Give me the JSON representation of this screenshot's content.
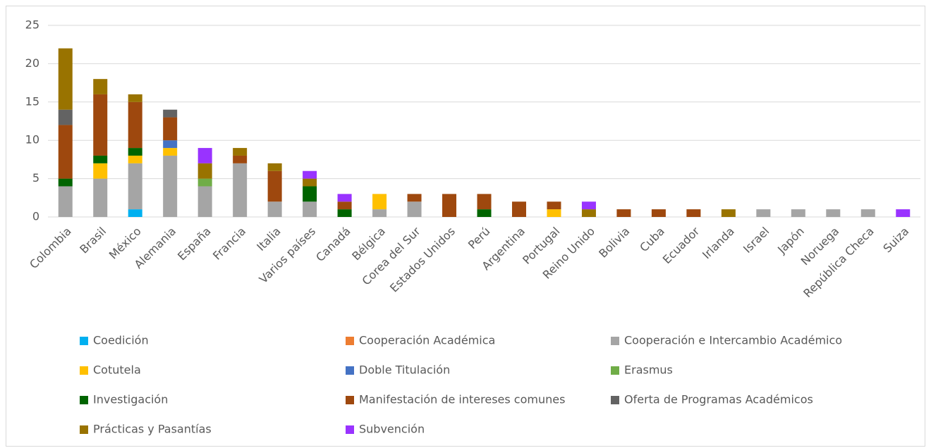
{
  "chart_data": {
    "type": "stacked_bar",
    "categories": [
      "Colombia",
      "Brasil",
      "México",
      "Alemania",
      "España",
      "Francia",
      "Italia",
      "Varios países",
      "Canadá",
      "Bélgica",
      "Corea del Sur",
      "Estados Unidos",
      "Perú",
      "Argentina",
      "Portugal",
      "Reino Unido",
      "Bolivia",
      "Cuba",
      "Ecuador",
      "Irlanda",
      "Israel",
      "Japón",
      "Noruega",
      "República Checa",
      "Suiza"
    ],
    "series": [
      {
        "name": "Coedición",
        "color": "#00b0f0",
        "values": [
          0,
          0,
          1,
          0,
          0,
          0,
          0,
          0,
          0,
          0,
          0,
          0,
          0,
          0,
          0,
          0,
          0,
          0,
          0,
          0,
          0,
          0,
          0,
          0,
          0
        ]
      },
      {
        "name": "Cooperación Académica",
        "color": "#ed7d31",
        "values": [
          0,
          0,
          0,
          0,
          0,
          0,
          0,
          0,
          0,
          0,
          0,
          0,
          0,
          0,
          0,
          0,
          0,
          0,
          0,
          0,
          0,
          0,
          0,
          0,
          0
        ]
      },
      {
        "name": "Cooperación e Intercambio Académico",
        "color": "#a5a5a5",
        "values": [
          4,
          5,
          6,
          8,
          4,
          7,
          2,
          2,
          0,
          1,
          2,
          0,
          0,
          0,
          0,
          0,
          0,
          0,
          0,
          0,
          1,
          1,
          1,
          1,
          0
        ]
      },
      {
        "name": "Cotutela",
        "color": "#ffc000",
        "values": [
          0,
          2,
          1,
          1,
          0,
          0,
          0,
          0,
          0,
          2,
          0,
          0,
          0,
          0,
          1,
          0,
          0,
          0,
          0,
          0,
          0,
          0,
          0,
          0,
          0
        ]
      },
      {
        "name": "Doble Titulación",
        "color": "#4472c4",
        "values": [
          0,
          0,
          0,
          1,
          0,
          0,
          0,
          0,
          0,
          0,
          0,
          0,
          0,
          0,
          0,
          0,
          0,
          0,
          0,
          0,
          0,
          0,
          0,
          0,
          0
        ]
      },
      {
        "name": "Erasmus",
        "color": "#70ad47",
        "values": [
          0,
          0,
          0,
          0,
          1,
          0,
          0,
          0,
          0,
          0,
          0,
          0,
          0,
          0,
          0,
          0,
          0,
          0,
          0,
          0,
          0,
          0,
          0,
          0,
          0
        ]
      },
      {
        "name": "Investigación",
        "color": "#006400",
        "values": [
          1,
          1,
          1,
          0,
          0,
          0,
          0,
          2,
          1,
          0,
          0,
          0,
          1,
          0,
          0,
          0,
          0,
          0,
          0,
          0,
          0,
          0,
          0,
          0,
          0
        ]
      },
      {
        "name": "Manifestación de intereses comunes",
        "color": "#9e480e",
        "values": [
          7,
          8,
          6,
          3,
          0,
          1,
          4,
          0,
          1,
          0,
          1,
          3,
          2,
          2,
          1,
          0,
          1,
          1,
          1,
          0,
          0,
          0,
          0,
          0,
          0
        ]
      },
      {
        "name": "Oferta de Programas Académicos",
        "color": "#636363",
        "values": [
          2,
          0,
          0,
          1,
          0,
          0,
          0,
          0,
          0,
          0,
          0,
          0,
          0,
          0,
          0,
          0,
          0,
          0,
          0,
          0,
          0,
          0,
          0,
          0,
          0
        ]
      },
      {
        "name": "Prácticas y Pasantías",
        "color": "#997300",
        "values": [
          8,
          2,
          1,
          0,
          2,
          1,
          1,
          1,
          0,
          0,
          0,
          0,
          0,
          0,
          0,
          1,
          0,
          0,
          0,
          1,
          0,
          0,
          0,
          0,
          0
        ]
      },
      {
        "name": "Subvención",
        "color": "#9933ff",
        "values": [
          0,
          0,
          0,
          0,
          2,
          0,
          0,
          1,
          1,
          0,
          0,
          0,
          0,
          0,
          0,
          1,
          0,
          0,
          0,
          0,
          0,
          0,
          0,
          0,
          1
        ]
      }
    ],
    "ylim": [
      0,
      25
    ],
    "yticks": [
      0,
      5,
      10,
      15,
      20,
      25
    ],
    "grid": true
  }
}
